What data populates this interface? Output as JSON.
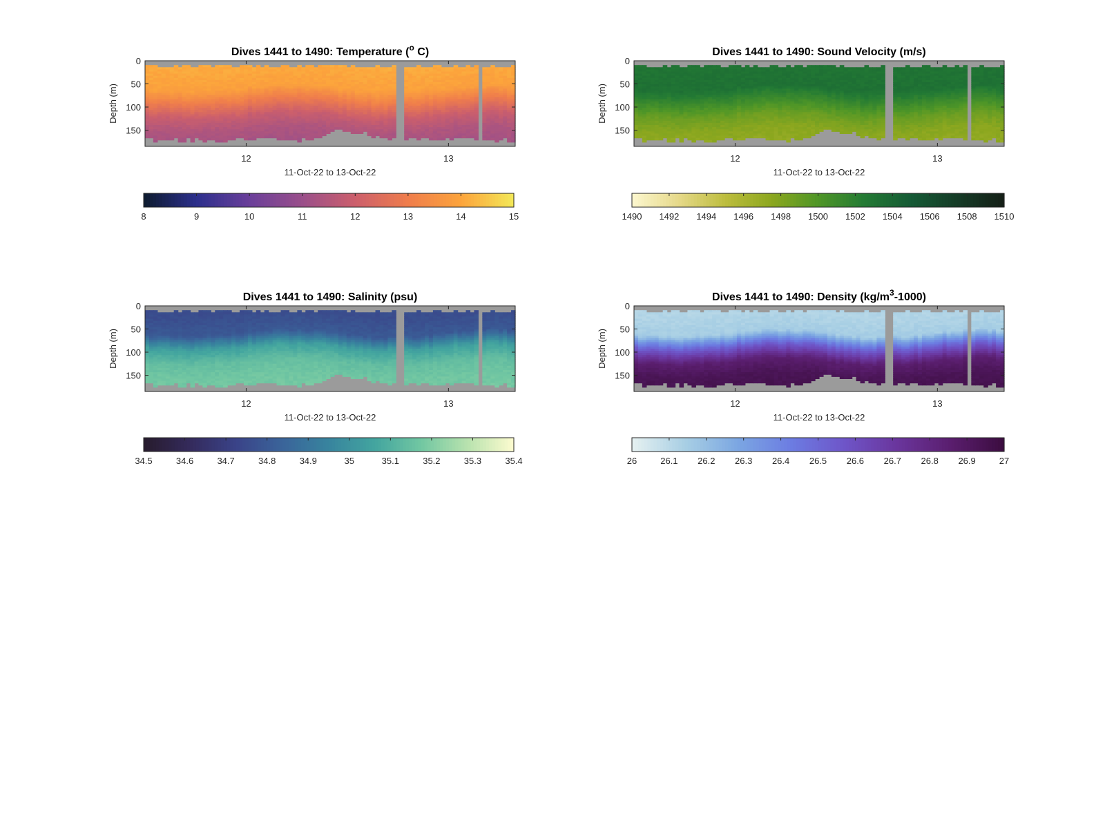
{
  "figure": {
    "panels": [
      {
        "title_prefix": "Dives 1441 to 1490: Temperature (",
        "title_sup": "o",
        "title_suffix": " C)",
        "ylabel": "Depth (m)",
        "xlabel": "11-Oct-22 to 13-Oct-22",
        "colormap": [
          "#0d1b2e",
          "#2c2f8c",
          "#6a3f9a",
          "#9a4f8a",
          "#cc5f6c",
          "#ef7d4c",
          "#fca43c",
          "#f3e858"
        ],
        "grey": "#9b9b9b"
      },
      {
        "title_prefix": "Dives 1441 to 1490: Sound Velocity (m/s)",
        "title_sup": "",
        "title_suffix": "",
        "ylabel": "Depth (m)",
        "xlabel": "11-Oct-22 to 13-Oct-22",
        "colormap": [
          "#fcf7cf",
          "#e6d98a",
          "#bdbd3e",
          "#8ca71f",
          "#4f9627",
          "#237a34",
          "#155a35",
          "#153b26",
          "#151f17"
        ],
        "grey": "#9b9b9b"
      },
      {
        "title_prefix": "Dives 1441 to 1490: Salinity (psu)",
        "title_sup": "",
        "title_suffix": "",
        "ylabel": "Depth (m)",
        "xlabel": "11-Oct-22 to 13-Oct-22",
        "colormap": [
          "#271b2c",
          "#342a5c",
          "#3a4388",
          "#3a649a",
          "#38849e",
          "#43a59f",
          "#72c7a2",
          "#b8e2ae",
          "#fdfbcf"
        ],
        "grey": "#9b9b9b"
      },
      {
        "title_prefix": "Dives 1441 to 1490: Density (kg/m",
        "title_sup": "3",
        "title_suffix": "-1000)",
        "ylabel": "Depth (m)",
        "xlabel": "11-Oct-22 to 13-Oct-22",
        "colormap": [
          "#e6f1f1",
          "#a8cfe4",
          "#7ba6e2",
          "#6c7ce2",
          "#6e55c8",
          "#6a359c",
          "#5a1e6e",
          "#3b0d3f"
        ],
        "grey": "#9b9b9b"
      }
    ]
  },
  "chart_data": [
    {
      "type": "heatmap",
      "variable": "Temperature",
      "x_ticks": [
        {
          "value": 12,
          "label": "12"
        },
        {
          "value": 13,
          "label": "13"
        }
      ],
      "xlim": [
        11.5,
        13.33
      ],
      "y_ticks": [
        {
          "value": 0,
          "label": "0"
        },
        {
          "value": 50,
          "label": "50"
        },
        {
          "value": 100,
          "label": "100"
        },
        {
          "value": 150,
          "label": "150"
        }
      ],
      "ylim": [
        0,
        185
      ],
      "y_reversed": true,
      "colorbar_ticks": [
        "8",
        "9",
        "10",
        "11",
        "12",
        "13",
        "14",
        "15"
      ],
      "clim": [
        8,
        15
      ],
      "data_gaps_x": [
        [
          12.74,
          12.78
        ],
        [
          13.145,
          13.175
        ]
      ],
      "profile": [
        {
          "depth": 10,
          "value": 14.1
        },
        {
          "depth": 60,
          "value": 13.9
        },
        {
          "depth": 90,
          "value": 12.9
        },
        {
          "depth": 120,
          "value": 11.9
        },
        {
          "depth": 150,
          "value": 11.4
        },
        {
          "depth": 180,
          "value": 11.2
        }
      ],
      "bottom_depth": [
        {
          "x": 11.5,
          "d": 170
        },
        {
          "x": 11.9,
          "d": 172
        },
        {
          "x": 12.1,
          "d": 168
        },
        {
          "x": 12.3,
          "d": 172
        },
        {
          "x": 12.38,
          "d": 165
        },
        {
          "x": 12.45,
          "d": 152
        },
        {
          "x": 12.55,
          "d": 155
        },
        {
          "x": 12.7,
          "d": 168
        },
        {
          "x": 13.0,
          "d": 170
        },
        {
          "x": 13.33,
          "d": 172
        }
      ]
    },
    {
      "type": "heatmap",
      "variable": "Sound Velocity",
      "x_ticks": [
        {
          "value": 12,
          "label": "12"
        },
        {
          "value": 13,
          "label": "13"
        }
      ],
      "xlim": [
        11.5,
        13.33
      ],
      "y_ticks": [
        {
          "value": 0,
          "label": "0"
        },
        {
          "value": 50,
          "label": "50"
        },
        {
          "value": 100,
          "label": "100"
        },
        {
          "value": 150,
          "label": "150"
        }
      ],
      "ylim": [
        0,
        185
      ],
      "y_reversed": true,
      "colorbar_ticks": [
        "1490",
        "1492",
        "1494",
        "1496",
        "1498",
        "1500",
        "1502",
        "1504",
        "1506",
        "1508",
        "1510"
      ],
      "clim": [
        1490,
        1510
      ],
      "data_gaps_x": [
        [
          12.74,
          12.78
        ],
        [
          13.145,
          13.175
        ]
      ],
      "profile": [
        {
          "depth": 20,
          "value": 1503.0
        },
        {
          "depth": 60,
          "value": 1503.2
        },
        {
          "depth": 90,
          "value": 1501.0
        },
        {
          "depth": 120,
          "value": 1498.8
        },
        {
          "depth": 150,
          "value": 1497.6
        },
        {
          "depth": 180,
          "value": 1497.2
        }
      ],
      "bottom_depth": [
        {
          "x": 11.5,
          "d": 170
        },
        {
          "x": 11.9,
          "d": 172
        },
        {
          "x": 12.1,
          "d": 168
        },
        {
          "x": 12.3,
          "d": 172
        },
        {
          "x": 12.38,
          "d": 165
        },
        {
          "x": 12.45,
          "d": 152
        },
        {
          "x": 12.55,
          "d": 155
        },
        {
          "x": 12.7,
          "d": 168
        },
        {
          "x": 13.0,
          "d": 170
        },
        {
          "x": 13.33,
          "d": 172
        }
      ]
    },
    {
      "type": "heatmap",
      "variable": "Salinity",
      "x_ticks": [
        {
          "value": 12,
          "label": "12"
        },
        {
          "value": 13,
          "label": "13"
        }
      ],
      "xlim": [
        11.5,
        13.33
      ],
      "y_ticks": [
        {
          "value": 0,
          "label": "0"
        },
        {
          "value": 50,
          "label": "50"
        },
        {
          "value": 100,
          "label": "100"
        },
        {
          "value": 150,
          "label": "150"
        }
      ],
      "ylim": [
        0,
        185
      ],
      "y_reversed": true,
      "colorbar_ticks": [
        "34.5",
        "34.6",
        "34.7",
        "34.8",
        "34.9",
        "35",
        "35.1",
        "35.2",
        "35.3",
        "35.4"
      ],
      "clim": [
        34.5,
        35.4
      ],
      "data_gaps_x": [
        [
          12.74,
          12.78
        ],
        [
          13.145,
          13.175
        ]
      ],
      "profile": [
        {
          "depth": 20,
          "value": 34.76
        },
        {
          "depth": 60,
          "value": 34.8
        },
        {
          "depth": 90,
          "value": 35.05
        },
        {
          "depth": 120,
          "value": 35.14
        },
        {
          "depth": 150,
          "value": 35.17
        },
        {
          "depth": 180,
          "value": 35.18
        }
      ],
      "bottom_depth": [
        {
          "x": 11.5,
          "d": 170
        },
        {
          "x": 11.9,
          "d": 172
        },
        {
          "x": 12.1,
          "d": 168
        },
        {
          "x": 12.3,
          "d": 172
        },
        {
          "x": 12.38,
          "d": 165
        },
        {
          "x": 12.45,
          "d": 152
        },
        {
          "x": 12.55,
          "d": 155
        },
        {
          "x": 12.7,
          "d": 168
        },
        {
          "x": 13.0,
          "d": 170
        },
        {
          "x": 13.33,
          "d": 172
        }
      ]
    },
    {
      "type": "heatmap",
      "variable": "Density",
      "x_ticks": [
        {
          "value": 12,
          "label": "12"
        },
        {
          "value": 13,
          "label": "13"
        }
      ],
      "xlim": [
        11.5,
        13.33
      ],
      "y_ticks": [
        {
          "value": 0,
          "label": "0"
        },
        {
          "value": 50,
          "label": "50"
        },
        {
          "value": 100,
          "label": "100"
        },
        {
          "value": 150,
          "label": "150"
        }
      ],
      "ylim": [
        0,
        185
      ],
      "y_reversed": true,
      "colorbar_ticks": [
        "26",
        "26.1",
        "26.2",
        "26.3",
        "26.4",
        "26.5",
        "26.6",
        "26.7",
        "26.8",
        "26.9",
        "27"
      ],
      "clim": [
        26,
        27
      ],
      "data_gaps_x": [
        [
          12.74,
          12.78
        ],
        [
          13.145,
          13.175
        ]
      ],
      "profile": [
        {
          "depth": 20,
          "value": 26.12
        },
        {
          "depth": 60,
          "value": 26.15
        },
        {
          "depth": 90,
          "value": 26.55
        },
        {
          "depth": 120,
          "value": 26.85
        },
        {
          "depth": 150,
          "value": 26.93
        },
        {
          "depth": 180,
          "value": 26.95
        }
      ],
      "bottom_depth": [
        {
          "x": 11.5,
          "d": 170
        },
        {
          "x": 11.9,
          "d": 172
        },
        {
          "x": 12.1,
          "d": 168
        },
        {
          "x": 12.3,
          "d": 172
        },
        {
          "x": 12.38,
          "d": 165
        },
        {
          "x": 12.45,
          "d": 152
        },
        {
          "x": 12.55,
          "d": 155
        },
        {
          "x": 12.7,
          "d": 168
        },
        {
          "x": 13.0,
          "d": 170
        },
        {
          "x": 13.33,
          "d": 172
        }
      ]
    }
  ]
}
